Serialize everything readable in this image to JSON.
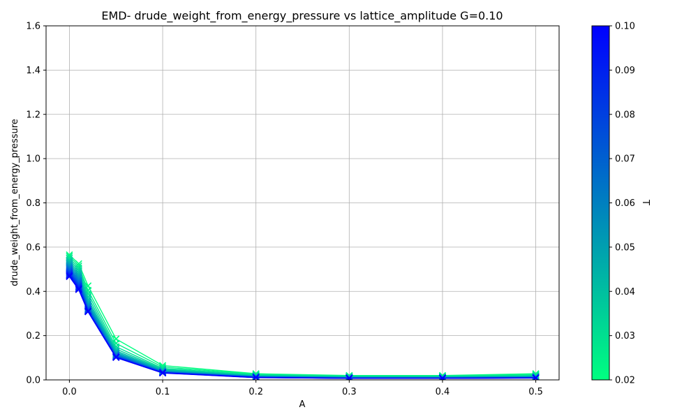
{
  "chart_data": {
    "type": "line",
    "title": "EMD- drude_weight_from_energy_pressure vs lattice_amplitude G=0.10",
    "xlabel": "A",
    "ylabel": "drude_weight_from_energy_pressure",
    "xlim": [
      -0.025,
      0.525
    ],
    "ylim": [
      0,
      1.6
    ],
    "x_ticks": [
      0.0,
      0.1,
      0.2,
      0.3,
      0.4,
      0.5
    ],
    "x_tick_labels": [
      "0.0",
      "0.1",
      "0.2",
      "0.3",
      "0.4",
      "0.5"
    ],
    "y_ticks": [
      0.0,
      0.2,
      0.4,
      0.6,
      0.8,
      1.0,
      1.2,
      1.4,
      1.6
    ],
    "y_tick_labels": [
      "0.0",
      "0.2",
      "0.4",
      "0.6",
      "0.8",
      "1.0",
      "1.2",
      "1.4",
      "1.6"
    ],
    "grid": true,
    "marker": "x",
    "x": [
      0.0,
      0.01,
      0.02,
      0.05,
      0.1,
      0.2,
      0.3,
      0.4,
      0.5
    ],
    "series": [
      {
        "T": 0.02,
        "color": "#00ff80",
        "values": [
          0.565,
          0.525,
          0.425,
          0.185,
          0.065,
          0.028,
          0.02,
          0.02,
          0.028
        ]
      },
      {
        "T": 0.025,
        "color": "#00f08a",
        "values": [
          0.558,
          0.515,
          0.405,
          0.165,
          0.058,
          0.025,
          0.018,
          0.018,
          0.024
        ]
      },
      {
        "T": 0.03,
        "color": "#00e094",
        "values": [
          0.55,
          0.505,
          0.39,
          0.15,
          0.052,
          0.022,
          0.016,
          0.016,
          0.02
        ]
      },
      {
        "T": 0.035,
        "color": "#00d09e",
        "values": [
          0.542,
          0.495,
          0.375,
          0.14,
          0.048,
          0.02,
          0.014,
          0.014,
          0.018
        ]
      },
      {
        "T": 0.04,
        "color": "#00c0a8",
        "values": [
          0.535,
          0.485,
          0.362,
          0.132,
          0.045,
          0.018,
          0.013,
          0.013,
          0.016
        ]
      },
      {
        "T": 0.045,
        "color": "#00b0b2",
        "values": [
          0.528,
          0.476,
          0.352,
          0.126,
          0.042,
          0.017,
          0.012,
          0.012,
          0.015
        ]
      },
      {
        "T": 0.05,
        "color": "#00a0bc",
        "values": [
          0.521,
          0.468,
          0.343,
          0.121,
          0.04,
          0.016,
          0.011,
          0.011,
          0.014
        ]
      },
      {
        "T": 0.055,
        "color": "#0090c6",
        "values": [
          0.514,
          0.46,
          0.336,
          0.117,
          0.038,
          0.015,
          0.01,
          0.01,
          0.013
        ]
      },
      {
        "T": 0.06,
        "color": "#0080d0",
        "values": [
          0.508,
          0.452,
          0.33,
          0.114,
          0.037,
          0.014,
          0.01,
          0.01,
          0.012
        ]
      },
      {
        "T": 0.065,
        "color": "#0070d9",
        "values": [
          0.502,
          0.445,
          0.325,
          0.111,
          0.036,
          0.013,
          0.009,
          0.009,
          0.011
        ]
      },
      {
        "T": 0.07,
        "color": "#0060e0",
        "values": [
          0.496,
          0.438,
          0.321,
          0.109,
          0.035,
          0.013,
          0.009,
          0.009,
          0.011
        ]
      },
      {
        "T": 0.075,
        "color": "#0050e8",
        "values": [
          0.49,
          0.432,
          0.317,
          0.107,
          0.034,
          0.012,
          0.008,
          0.008,
          0.01
        ]
      },
      {
        "T": 0.08,
        "color": "#0040ee",
        "values": [
          0.485,
          0.426,
          0.314,
          0.105,
          0.033,
          0.012,
          0.008,
          0.008,
          0.01
        ]
      },
      {
        "T": 0.085,
        "color": "#0030f4",
        "values": [
          0.48,
          0.421,
          0.312,
          0.104,
          0.033,
          0.011,
          0.008,
          0.008,
          0.009
        ]
      },
      {
        "T": 0.09,
        "color": "#0020f8",
        "values": [
          0.475,
          0.416,
          0.31,
          0.103,
          0.032,
          0.011,
          0.007,
          0.007,
          0.009
        ]
      },
      {
        "T": 0.095,
        "color": "#0010fc",
        "values": [
          0.471,
          0.412,
          0.309,
          0.102,
          0.032,
          0.011,
          0.007,
          0.007,
          0.009
        ]
      },
      {
        "T": 0.1,
        "color": "#0000ff",
        "values": [
          0.467,
          0.408,
          0.308,
          0.101,
          0.031,
          0.01,
          0.007,
          0.007,
          0.008
        ]
      }
    ],
    "colorbar": {
      "label": "T",
      "range": [
        0.02,
        0.1
      ],
      "ticks": [
        0.02,
        0.03,
        0.04,
        0.05,
        0.06,
        0.07,
        0.08,
        0.09,
        0.1
      ],
      "tick_labels": [
        "0.02",
        "0.03",
        "0.04",
        "0.05",
        "0.06",
        "0.07",
        "0.08",
        "0.09",
        "0.10"
      ],
      "color_low": "#00ff80",
      "color_high": "#0000ff"
    }
  }
}
